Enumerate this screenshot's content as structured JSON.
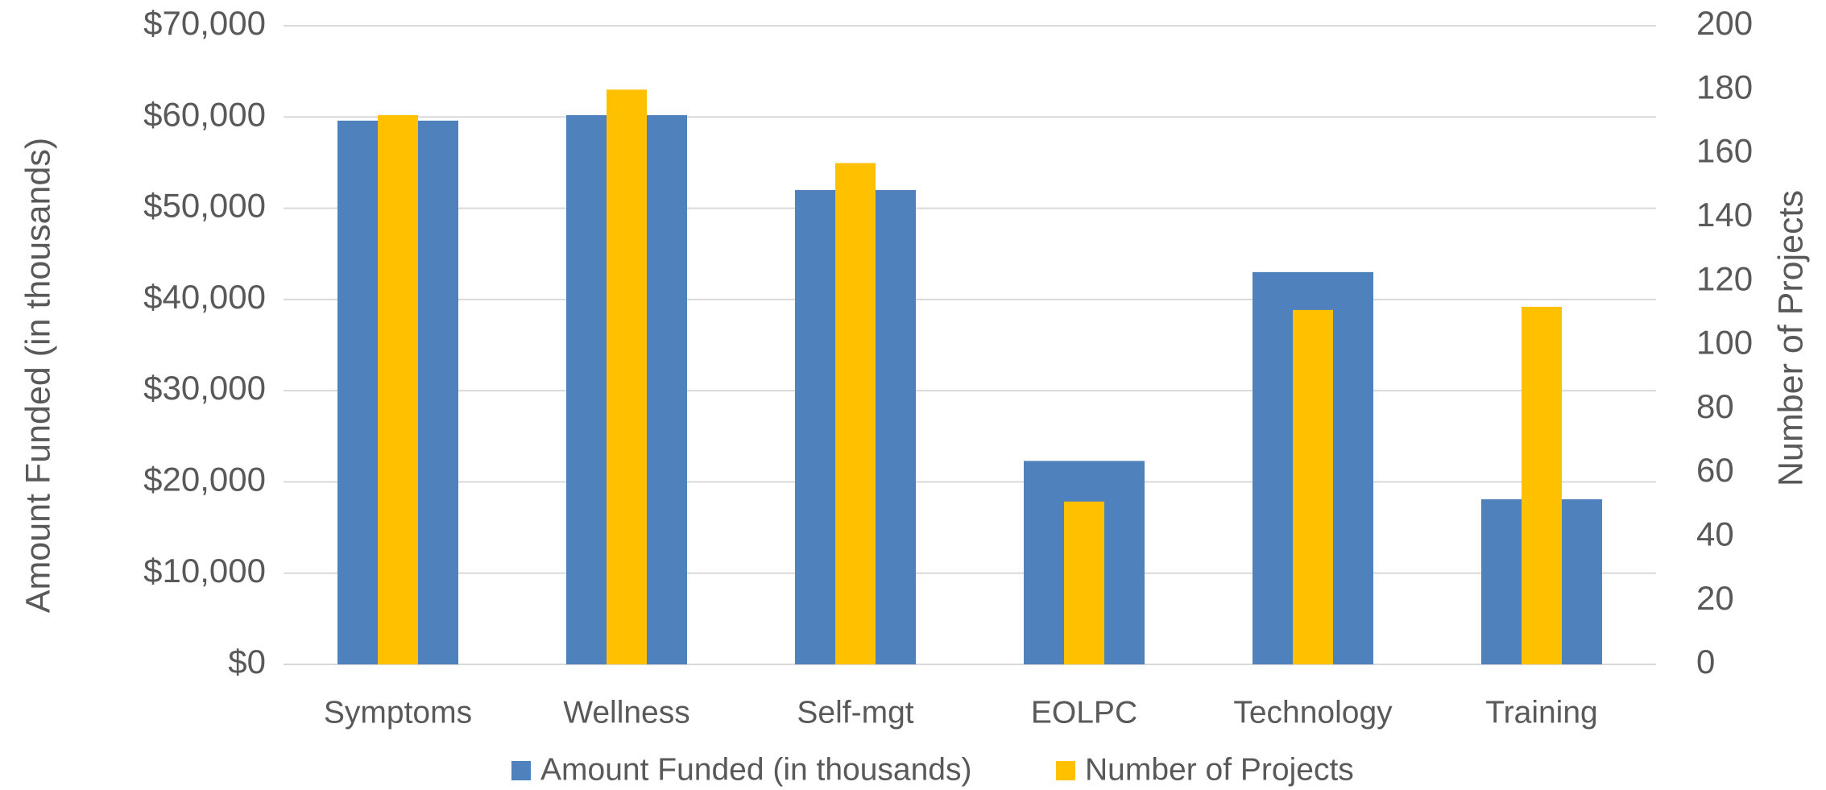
{
  "chart_data": {
    "type": "bar",
    "categories": [
      "Symptoms",
      "Wellness",
      "Self-mgt",
      "EOLPC",
      "Technology",
      "Training"
    ],
    "series": [
      {
        "name": "Amount Funded (in thousands)",
        "axis": "left",
        "color": "#4F81BD",
        "values": [
          59600,
          60200,
          52000,
          22300,
          43000,
          18100
        ]
      },
      {
        "name": "Number of Projects",
        "axis": "right",
        "color": "#FFC000",
        "values": [
          172,
          180,
          157,
          51,
          111,
          112
        ]
      }
    ],
    "ylabel": "Amount Funded (in thousands)",
    "ylabel_right": "Number of Projects",
    "ylim": [
      0,
      70000
    ],
    "ylim_right": [
      0,
      200
    ],
    "yticks": [
      "$0",
      "$10,000",
      "$20,000",
      "$30,000",
      "$40,000",
      "$50,000",
      "$60,000",
      "$70,000"
    ],
    "yticks_right": [
      "0",
      "20",
      "40",
      "60",
      "80",
      "100",
      "120",
      "140",
      "160",
      "180",
      "200"
    ],
    "grid": true,
    "gridline_color": "#D9D9D9",
    "legend_position": "bottom"
  }
}
